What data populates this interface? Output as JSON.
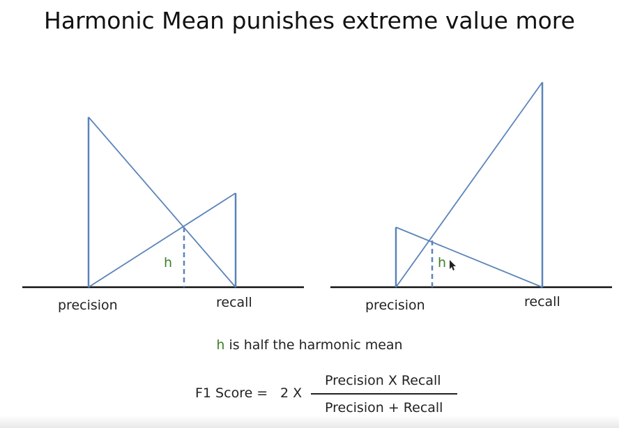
{
  "title": "Harmonic Mean punishes extreme value more",
  "diagrams": [
    {
      "precision_label": "precision",
      "recall_label": "recall",
      "h_label": "h"
    },
    {
      "precision_label": "precision",
      "recall_label": "recall",
      "h_label": "h"
    }
  ],
  "note": {
    "h": "h",
    "rest": " is half the harmonic mean"
  },
  "formula": {
    "lhs": "F1 Score =",
    "multiplier": "2 X",
    "numerator": "Precision X Recall",
    "denominator": "Precision + Recall"
  },
  "colors": {
    "line": "#5b84b8",
    "baseline": "#111111",
    "h": "#3f7f2a"
  }
}
